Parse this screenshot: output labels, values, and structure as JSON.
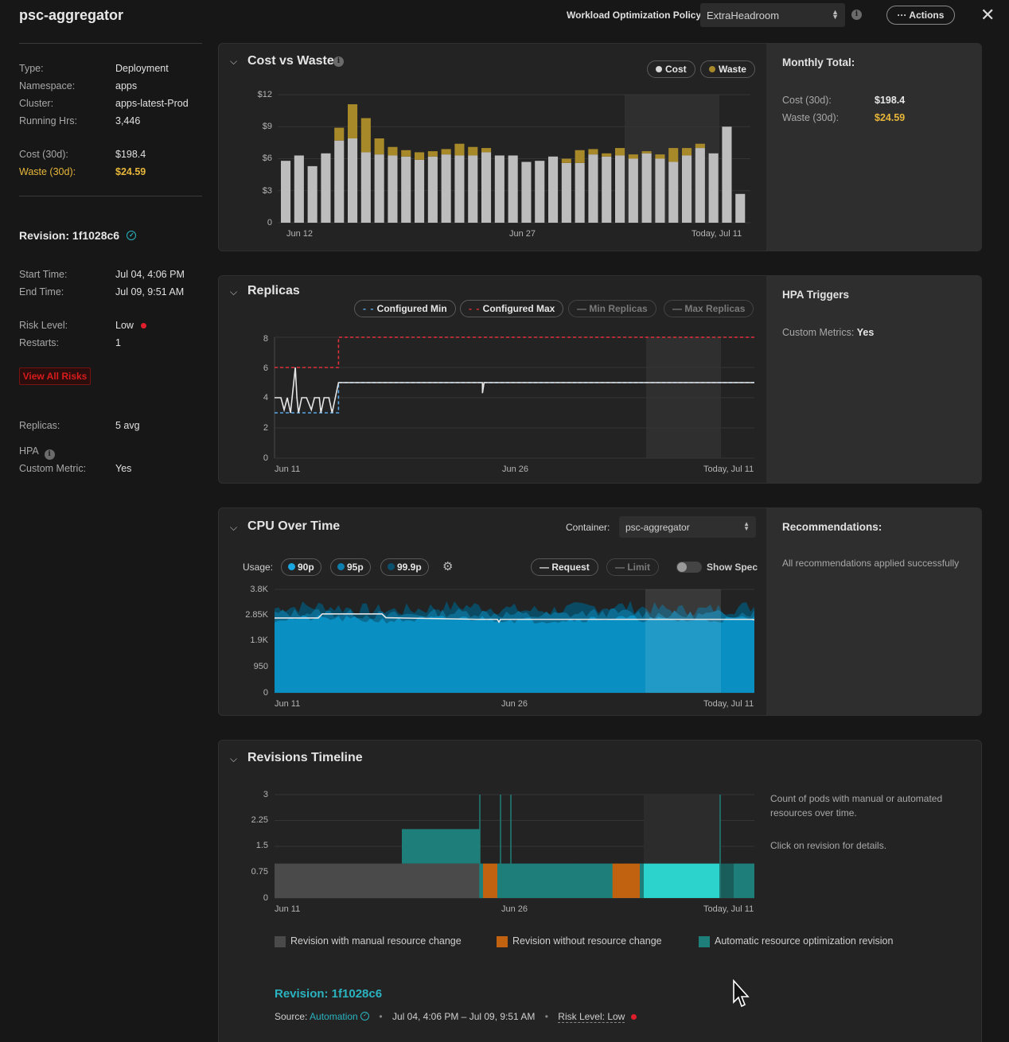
{
  "header": {
    "title": "psc-aggregator",
    "policy_label": "Workload Optimization Policy",
    "policy_value": "ExtraHeadroom",
    "actions_label": "··· Actions",
    "close_icon": "close-icon"
  },
  "sidebar": {
    "type_label": "Type:",
    "type_value": "Deployment",
    "namespace_label": "Namespace:",
    "namespace_value": "apps",
    "cluster_label": "Cluster:",
    "cluster_value": "apps-latest-Prod",
    "running_label": "Running Hrs:",
    "running_value": "3,446",
    "cost_label": "Cost (30d):",
    "cost_value": "$198.4",
    "waste_label": "Waste (30d):",
    "waste_value": "$24.59",
    "revision_heading": "Revision: 1f1028c6",
    "start_label": "Start Time:",
    "start_value": "Jul 04, 4:06 PM",
    "end_label": "End Time:",
    "end_value": "Jul 09, 9:51 AM",
    "risk_label": "Risk Level:",
    "risk_value": "Low",
    "restarts_label": "Restarts:",
    "restarts_value": "1",
    "view_risks_label": "View All Risks",
    "replicas_label": "Replicas:",
    "replicas_value": "5 avg",
    "hpa_label": "HPA",
    "custom_metric_label": "Custom Metric:",
    "custom_metric_value": "Yes"
  },
  "cost_panel": {
    "title": "Cost vs Waste",
    "legend_cost": "Cost",
    "legend_waste": "Waste",
    "side_title": "Monthly Total:",
    "side_cost_label": "Cost (30d):",
    "side_cost_value": "$198.4",
    "side_waste_label": "Waste (30d):",
    "side_waste_value": "$24.59",
    "y_ticks": [
      "$12",
      "$9",
      "$6",
      "$3",
      "0"
    ],
    "x_ticks": [
      "Jun 12",
      "Jun 27",
      "Today, Jul 11"
    ]
  },
  "replicas_panel": {
    "title": "Replicas",
    "legend": [
      "Configured Min",
      "Configured Max",
      "Min Replicas",
      "Max Replicas"
    ],
    "side_title": "HPA Triggers",
    "side_label": "Custom Metrics:",
    "side_value": "Yes",
    "y_ticks": [
      "8",
      "6",
      "4",
      "2",
      "0"
    ],
    "x_ticks": [
      "Jun 11",
      "Jun 26",
      "Today, Jul 11"
    ]
  },
  "cpu_panel": {
    "title": "CPU Over Time",
    "container_label": "Container:",
    "container_value": "psc-aggregator",
    "usage_label": "Usage:",
    "pills": [
      "90p",
      "95p",
      "99.9p"
    ],
    "request_label": "Request",
    "limit_label": "Limit",
    "show_spec_label": "Show Spec",
    "side_title": "Recommendations:",
    "side_text": "All recommendations applied successfully",
    "y_ticks": [
      "3.8K",
      "2.85K",
      "1.9K",
      "950",
      "0"
    ],
    "x_ticks": [
      "Jun 11",
      "Jun 26",
      "Today, Jul 11"
    ]
  },
  "revisions_panel": {
    "title": "Revisions Timeline",
    "side_text_1": "Count of pods with manual or automated resources over time.",
    "side_text_2": "Click on revision for details.",
    "y_ticks": [
      "3",
      "2.25",
      "1.5",
      "0.75",
      "0"
    ],
    "x_ticks": [
      "Jun 11",
      "Jun 26",
      "Today, Jul 11"
    ],
    "legend": [
      "Revision with manual resource change",
      "Revision without resource change",
      "Automatic resource optimization revision"
    ],
    "revision_title": "Revision: 1f1028c6",
    "source_label": "Source:",
    "source_value": "Automation",
    "date_range": "Jul 04, 4:06 PM – Jul 09, 9:51 AM",
    "risk_text": "Risk Level: Low"
  },
  "colors": {
    "waste": "#a8892a",
    "cost_bar": "#bdbdbd",
    "cpu_fill": "#0a8fc2",
    "manual": "#4a4a4a",
    "no_change": "#c0620f",
    "auto": "#1e7f7a",
    "auto_bright": "#2bd3cc",
    "config_max": "#e0303a",
    "config_min": "#5aa8e8"
  },
  "chart_data": [
    {
      "type": "bar",
      "title": "Cost vs Waste",
      "series": [
        {
          "name": "Cost",
          "values": [
            5.8,
            6.3,
            5.3,
            6.5,
            7.7,
            7.9,
            6.6,
            6.4,
            6.3,
            6.2,
            5.9,
            6.2,
            6.4,
            6.3,
            6.3,
            6.6,
            6.3,
            6.3,
            5.7,
            5.8,
            6.2,
            5.6,
            5.6,
            6.4,
            6.2,
            6.3,
            6.0,
            6.5,
            6.0,
            5.7,
            6.3,
            7.0,
            6.5,
            9.0,
            2.7
          ]
        },
        {
          "name": "Waste",
          "values": [
            0,
            0,
            0,
            0,
            1.2,
            3.2,
            3.2,
            1.5,
            0.8,
            0.6,
            0.7,
            0.5,
            0.5,
            1.1,
            0.8,
            0.4,
            0,
            0,
            0,
            0,
            0,
            0.4,
            1.2,
            0.5,
            0.3,
            0.7,
            0.4,
            0.2,
            0.4,
            1.3,
            0.7,
            0.4,
            0,
            0,
            0
          ]
        }
      ],
      "ylim": [
        0,
        12
      ],
      "y_ticks": [
        "$12",
        "$9",
        "$6",
        "$3",
        "0"
      ],
      "x_ticks": [
        "Jun 12",
        "Jun 27",
        "Today, Jul 11"
      ],
      "legend": "top-right"
    },
    {
      "type": "line",
      "title": "Replicas",
      "series": [
        {
          "name": "Configured Min",
          "values_desc": "3 until ~Jun 15, then 5"
        },
        {
          "name": "Configured Max",
          "values_desc": "6 until ~Jun 15, then 8"
        }
      ],
      "configured_min": [
        [
          0,
          3
        ],
        [
          4,
          3
        ],
        [
          4,
          5
        ],
        [
          30,
          5
        ]
      ],
      "configured_max": [
        [
          0,
          6
        ],
        [
          4,
          6
        ],
        [
          4,
          8
        ],
        [
          30,
          8
        ]
      ],
      "ylim": [
        0,
        8
      ],
      "y_ticks": [
        "8",
        "6",
        "4",
        "2",
        "0"
      ],
      "x_ticks": [
        "Jun 11",
        "Jun 26",
        "Today, Jul 11"
      ]
    },
    {
      "type": "area",
      "title": "CPU Over Time",
      "series": [
        {
          "name": "90p",
          "approx_level": 2700
        },
        {
          "name": "95p",
          "approx_level": 2900
        },
        {
          "name": "99.9p",
          "approx_level": 3100
        },
        {
          "name": "Request",
          "approx_level": 2750
        }
      ],
      "ylim": [
        0,
        3800
      ],
      "y_ticks": [
        "3.8K",
        "2.85K",
        "1.9K",
        "950",
        "0"
      ],
      "x_ticks": [
        "Jun 11",
        "Jun 26",
        "Today, Jul 11"
      ]
    },
    {
      "type": "area",
      "title": "Revisions Timeline",
      "series": [
        {
          "name": "Revision with manual resource change",
          "value": 1
        },
        {
          "name": "Revision without resource change",
          "value": 1
        },
        {
          "name": "Automatic resource optimization revision",
          "value": 1
        }
      ],
      "ylim": [
        0,
        3
      ],
      "y_ticks": [
        "3",
        "2.25",
        "1.5",
        "0.75",
        "0"
      ],
      "x_ticks": [
        "Jun 11",
        "Jun 26",
        "Today, Jul 11"
      ]
    }
  ]
}
